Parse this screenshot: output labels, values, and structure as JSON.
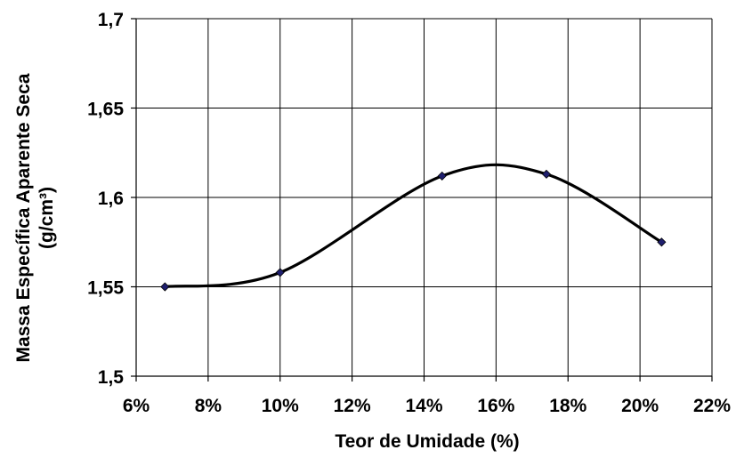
{
  "chart_data": {
    "type": "line",
    "smooth": true,
    "xlabel": "Teor de Umidade (%)",
    "ylabel_line1": "Massa Específica Aparente Seca",
    "ylabel_line2": "(g/cm³)",
    "xlim": [
      6,
      22
    ],
    "ylim": [
      1.5,
      1.7
    ],
    "x_ticks": [
      6,
      8,
      10,
      12,
      14,
      16,
      18,
      20,
      22
    ],
    "x_tick_labels": [
      "6%",
      "8%",
      "10%",
      "12%",
      "14%",
      "16%",
      "18%",
      "20%",
      "22%"
    ],
    "y_ticks": [
      1.5,
      1.55,
      1.6,
      1.65,
      1.7
    ],
    "y_tick_labels": [
      "1,5",
      "1,55",
      "1,6",
      "1,65",
      "1,7"
    ],
    "grid": true,
    "series": [
      {
        "x": [
          6.8,
          10.0,
          14.5,
          17.4,
          20.6
        ],
        "y": [
          1.55,
          1.558,
          1.612,
          1.613,
          1.575
        ],
        "line_color": "#000000",
        "marker": "diamond",
        "marker_color": "#1f1f6e"
      }
    ]
  }
}
